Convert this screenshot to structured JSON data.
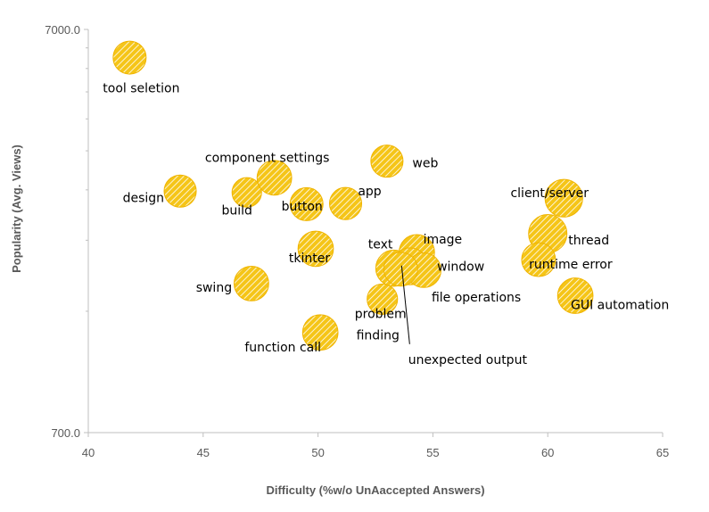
{
  "chart_data": {
    "type": "scatter",
    "subtype": "bubble",
    "title": "",
    "xlabel": "Difficulty (%w/o UnAaccepted Answers)",
    "ylabel": "Popularity (Avg. Views)",
    "xlim": [
      40,
      65
    ],
    "ylim": [
      700,
      7000
    ],
    "y_scale": "log",
    "x_ticks": [
      "40",
      "45",
      "50",
      "55",
      "60",
      "65"
    ],
    "y_ticks": [
      "7000.0",
      "700.0"
    ],
    "grid": false,
    "colors": {
      "fill": "#f5c518",
      "edge": "#f0b400",
      "hatch": "#ffffff"
    },
    "points": [
      {
        "label": "tool seletion",
        "x": 41.8,
        "y": 5960,
        "size": 1.0
      },
      {
        "label": "design",
        "x": 44.0,
        "y": 2780,
        "size": 0.95
      },
      {
        "label": "build",
        "x": 46.9,
        "y": 2760,
        "size": 0.8
      },
      {
        "label": "component settings",
        "x": 48.1,
        "y": 3000,
        "size": 1.1
      },
      {
        "label": "button",
        "x": 49.5,
        "y": 2580,
        "size": 1.0
      },
      {
        "label": "app",
        "x": 51.2,
        "y": 2590,
        "size": 0.95
      },
      {
        "label": "web",
        "x": 53.0,
        "y": 3300,
        "size": 0.95
      },
      {
        "label": "tkinter",
        "x": 49.9,
        "y": 2000,
        "size": 1.15
      },
      {
        "label": "swing",
        "x": 47.1,
        "y": 1640,
        "size": 1.1
      },
      {
        "label": "function call",
        "x": 50.1,
        "y": 1240,
        "size": 1.15
      },
      {
        "label": "problem finding",
        "x": 52.8,
        "y": 1500,
        "size": 0.85
      },
      {
        "label": "image",
        "x": 54.3,
        "y": 1960,
        "size": 1.15
      },
      {
        "label": "text",
        "x": 53.3,
        "y": 1790,
        "size": 1.2
      },
      {
        "label": "window",
        "x": 54.0,
        "y": 1810,
        "size": 1.25
      },
      {
        "label": "file operations",
        "x": 54.6,
        "y": 1770,
        "size": 1.1
      },
      {
        "label": "unexpected output",
        "x": 53.6,
        "y": 1780,
        "size": 1.05
      },
      {
        "label": "client/server",
        "x": 60.7,
        "y": 2670,
        "size": 1.3
      },
      {
        "label": "thread",
        "x": 60.0,
        "y": 2180,
        "size": 1.35
      },
      {
        "label": "runtime error",
        "x": 59.6,
        "y": 1880,
        "size": 1.05
      },
      {
        "label": "GUI automation",
        "x": 61.2,
        "y": 1530,
        "size": 1.15
      }
    ]
  }
}
